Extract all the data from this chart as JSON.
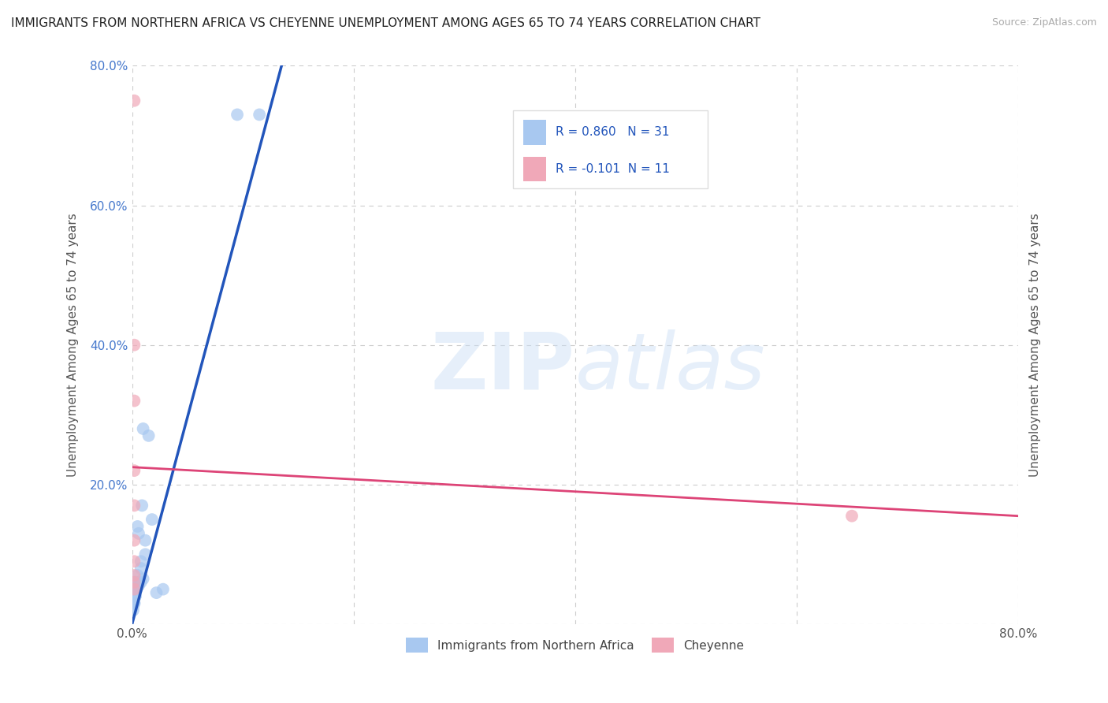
{
  "title": "IMMIGRANTS FROM NORTHERN AFRICA VS CHEYENNE UNEMPLOYMENT AMONG AGES 65 TO 74 YEARS CORRELATION CHART",
  "source": "Source: ZipAtlas.com",
  "ylabel": "Unemployment Among Ages 65 to 74 years",
  "xlim": [
    0,
    0.8
  ],
  "ylim": [
    0,
    0.8
  ],
  "yticks": [
    0.0,
    0.2,
    0.4,
    0.6,
    0.8
  ],
  "ytick_labels": [
    "",
    "20.0%",
    "40.0%",
    "60.0%",
    "80.0%"
  ],
  "xticks": [
    0.0,
    0.2,
    0.4,
    0.6,
    0.8
  ],
  "xtick_labels": [
    "0.0%",
    "",
    "",
    "",
    "80.0%"
  ],
  "blue_R": "R = 0.860",
  "blue_N": "N = 31",
  "pink_R": "R = -0.101",
  "pink_N": "N = 11",
  "blue_scatter_x": [
    0.095,
    0.115,
    0.01,
    0.015,
    0.005,
    0.002,
    0.005,
    0.002,
    0.008,
    0.012,
    0.018,
    0.009,
    0.006,
    0.002,
    0.003,
    0.004,
    0.008,
    0.012,
    0.002,
    0.004,
    0.006,
    0.002,
    0.001,
    0.003,
    0.004,
    0.008,
    0.01,
    0.022,
    0.028,
    0.002,
    0.001
  ],
  "blue_scatter_y": [
    0.73,
    0.73,
    0.28,
    0.27,
    0.14,
    0.06,
    0.07,
    0.05,
    0.08,
    0.1,
    0.15,
    0.17,
    0.13,
    0.05,
    0.04,
    0.06,
    0.09,
    0.12,
    0.04,
    0.05,
    0.055,
    0.03,
    0.025,
    0.04,
    0.05,
    0.06,
    0.065,
    0.045,
    0.05,
    0.03,
    0.02
  ],
  "pink_scatter_x": [
    0.002,
    0.002,
    0.002,
    0.002,
    0.002,
    0.002,
    0.002,
    0.002,
    0.002,
    0.002,
    0.65
  ],
  "pink_scatter_y": [
    0.75,
    0.4,
    0.32,
    0.22,
    0.17,
    0.12,
    0.09,
    0.07,
    0.06,
    0.05,
    0.155
  ],
  "blue_line_x": [
    0.0,
    0.135
  ],
  "blue_line_y": [
    0.0,
    0.8
  ],
  "pink_line_x": [
    0.0,
    0.8
  ],
  "pink_line_y": [
    0.225,
    0.155
  ],
  "watermark": "ZIPatlas",
  "title_fontsize": 11,
  "source_fontsize": 9,
  "legend_label_blue": "Immigrants from Northern Africa",
  "legend_label_pink": "Cheyenne",
  "background_color": "#ffffff",
  "grid_color": "#cccccc",
  "blue_color": "#a8c8f0",
  "blue_line_color": "#2255bb",
  "pink_color": "#f0a8b8",
  "pink_line_color": "#dd4477",
  "legend_text_color": "#2255bb",
  "axis_right_color": "#4477cc"
}
